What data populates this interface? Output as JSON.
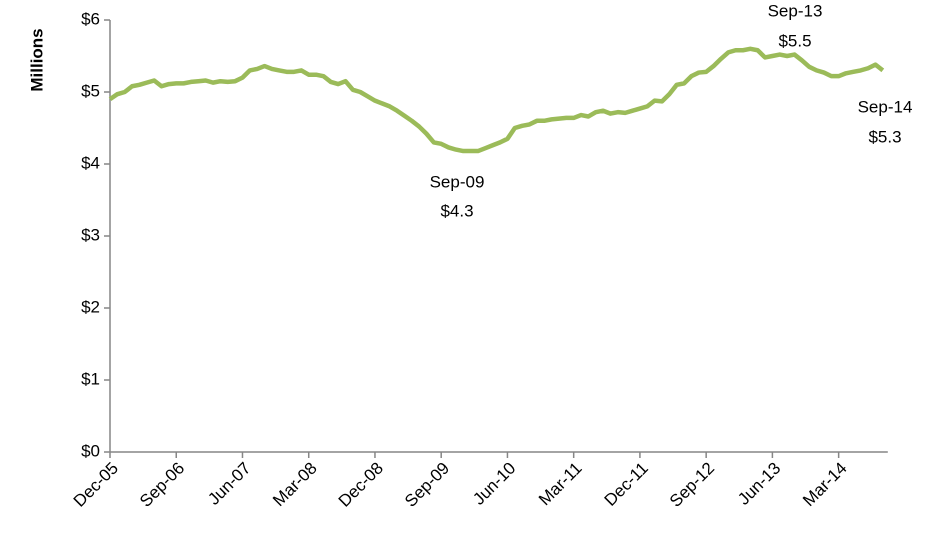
{
  "chart_data": {
    "type": "line",
    "y_label": "Millions",
    "categories": [
      "Dec-05",
      null,
      null,
      null,
      null,
      null,
      null,
      null,
      null,
      "Sep-06",
      null,
      null,
      null,
      null,
      null,
      null,
      null,
      null,
      "Jun-07",
      null,
      null,
      null,
      null,
      null,
      null,
      null,
      null,
      "Mar-08",
      null,
      null,
      null,
      null,
      null,
      null,
      null,
      null,
      "Dec-08",
      null,
      null,
      null,
      null,
      null,
      null,
      null,
      null,
      "Sep-09",
      null,
      null,
      null,
      null,
      null,
      null,
      null,
      null,
      "Jun-10",
      null,
      null,
      null,
      null,
      null,
      null,
      null,
      null,
      "Mar-11",
      null,
      null,
      null,
      null,
      null,
      null,
      null,
      null,
      "Dec-11",
      null,
      null,
      null,
      null,
      null,
      null,
      null,
      null,
      "Sep-12",
      null,
      null,
      null,
      null,
      null,
      null,
      null,
      null,
      "Jun-13",
      null,
      null,
      null,
      null,
      null,
      null,
      null,
      null,
      "Mar-14",
      null,
      null,
      null,
      null,
      null,
      null
    ],
    "values": [
      4.9,
      4.97,
      5.0,
      5.08,
      5.1,
      5.13,
      5.16,
      5.08,
      5.11,
      5.12,
      5.12,
      5.14,
      5.15,
      5.16,
      5.13,
      5.15,
      5.14,
      5.15,
      5.2,
      5.3,
      5.32,
      5.36,
      5.32,
      5.3,
      5.28,
      5.28,
      5.3,
      5.24,
      5.24,
      5.22,
      5.14,
      5.11,
      5.15,
      5.03,
      5.0,
      4.94,
      4.88,
      4.84,
      4.8,
      4.74,
      4.67,
      4.6,
      4.52,
      4.42,
      4.3,
      4.28,
      4.23,
      4.2,
      4.18,
      4.18,
      4.18,
      4.22,
      4.26,
      4.3,
      4.35,
      4.5,
      4.53,
      4.55,
      4.6,
      4.6,
      4.62,
      4.63,
      4.64,
      4.64,
      4.68,
      4.66,
      4.72,
      4.74,
      4.7,
      4.72,
      4.71,
      4.74,
      4.77,
      4.8,
      4.88,
      4.87,
      4.97,
      5.1,
      5.12,
      5.22,
      5.27,
      5.28,
      5.36,
      5.46,
      5.55,
      5.58,
      5.58,
      5.6,
      5.58,
      5.48,
      5.5,
      5.52,
      5.5,
      5.52,
      5.44,
      5.35,
      5.3,
      5.27,
      5.22,
      5.22,
      5.26,
      5.28,
      5.3,
      5.33,
      5.38,
      5.3
    ],
    "color": "#9bbb59",
    "ylim": [
      0,
      6
    ],
    "yticks": [
      {
        "value": 0,
        "label": "$0"
      },
      {
        "value": 1,
        "label": "$1"
      },
      {
        "value": 2,
        "label": "$2"
      },
      {
        "value": 3,
        "label": "$3"
      },
      {
        "value": 4,
        "label": "$4"
      },
      {
        "value": 5,
        "label": "$5"
      },
      {
        "value": 6,
        "label": "$6"
      }
    ],
    "grid": false,
    "annotations": [
      {
        "label": "Sep-09",
        "value": 4.3,
        "value_label": "$4.3"
      },
      {
        "label": "Sep-13",
        "value": 5.5,
        "value_label": "$5.5"
      },
      {
        "label": "Sep-14",
        "value": 5.3,
        "value_label": "$5.3"
      }
    ]
  }
}
